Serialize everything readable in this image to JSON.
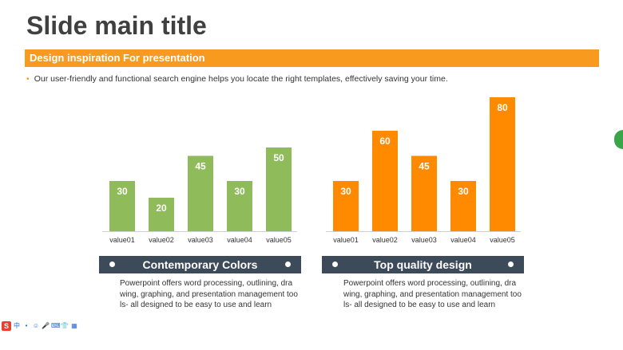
{
  "slide": {
    "title": "Slide main title",
    "banner": "Design inspiration For presentation",
    "bullet": "Our user-friendly and functional search engine helps you locate the right templates, effectively saving your time."
  },
  "colors": {
    "accent": "#f79a1e",
    "green_bar": "#8fbb5a",
    "orange_bar": "#ff8a00",
    "caption_bg": "#3d4a5a"
  },
  "chart_data": [
    {
      "type": "bar",
      "categories": [
        "value01",
        "value02",
        "value03",
        "value04",
        "value05"
      ],
      "values": [
        30,
        20,
        45,
        30,
        50
      ],
      "ylim": [
        0,
        85
      ],
      "color": "#8fbb5a",
      "caption": "Contemporary Colors",
      "description": "Powerpoint offers word processing, outlining, dra wing, graphing, and presentation management too ls- all designed to be easy to use and learn"
    },
    {
      "type": "bar",
      "categories": [
        "value01",
        "value02",
        "value03",
        "value04",
        "value05"
      ],
      "values": [
        30,
        60,
        45,
        30,
        80
      ],
      "ylim": [
        0,
        85
      ],
      "color": "#ff8a00",
      "caption": "Top quality design",
      "description": "Powerpoint offers word processing, outlining, dra wing, graphing, and presentation management too ls- all designed to be easy to use and learn"
    }
  ],
  "toolbar": {
    "logo_icon": "sogou-input-icon",
    "ime_label": "中"
  }
}
